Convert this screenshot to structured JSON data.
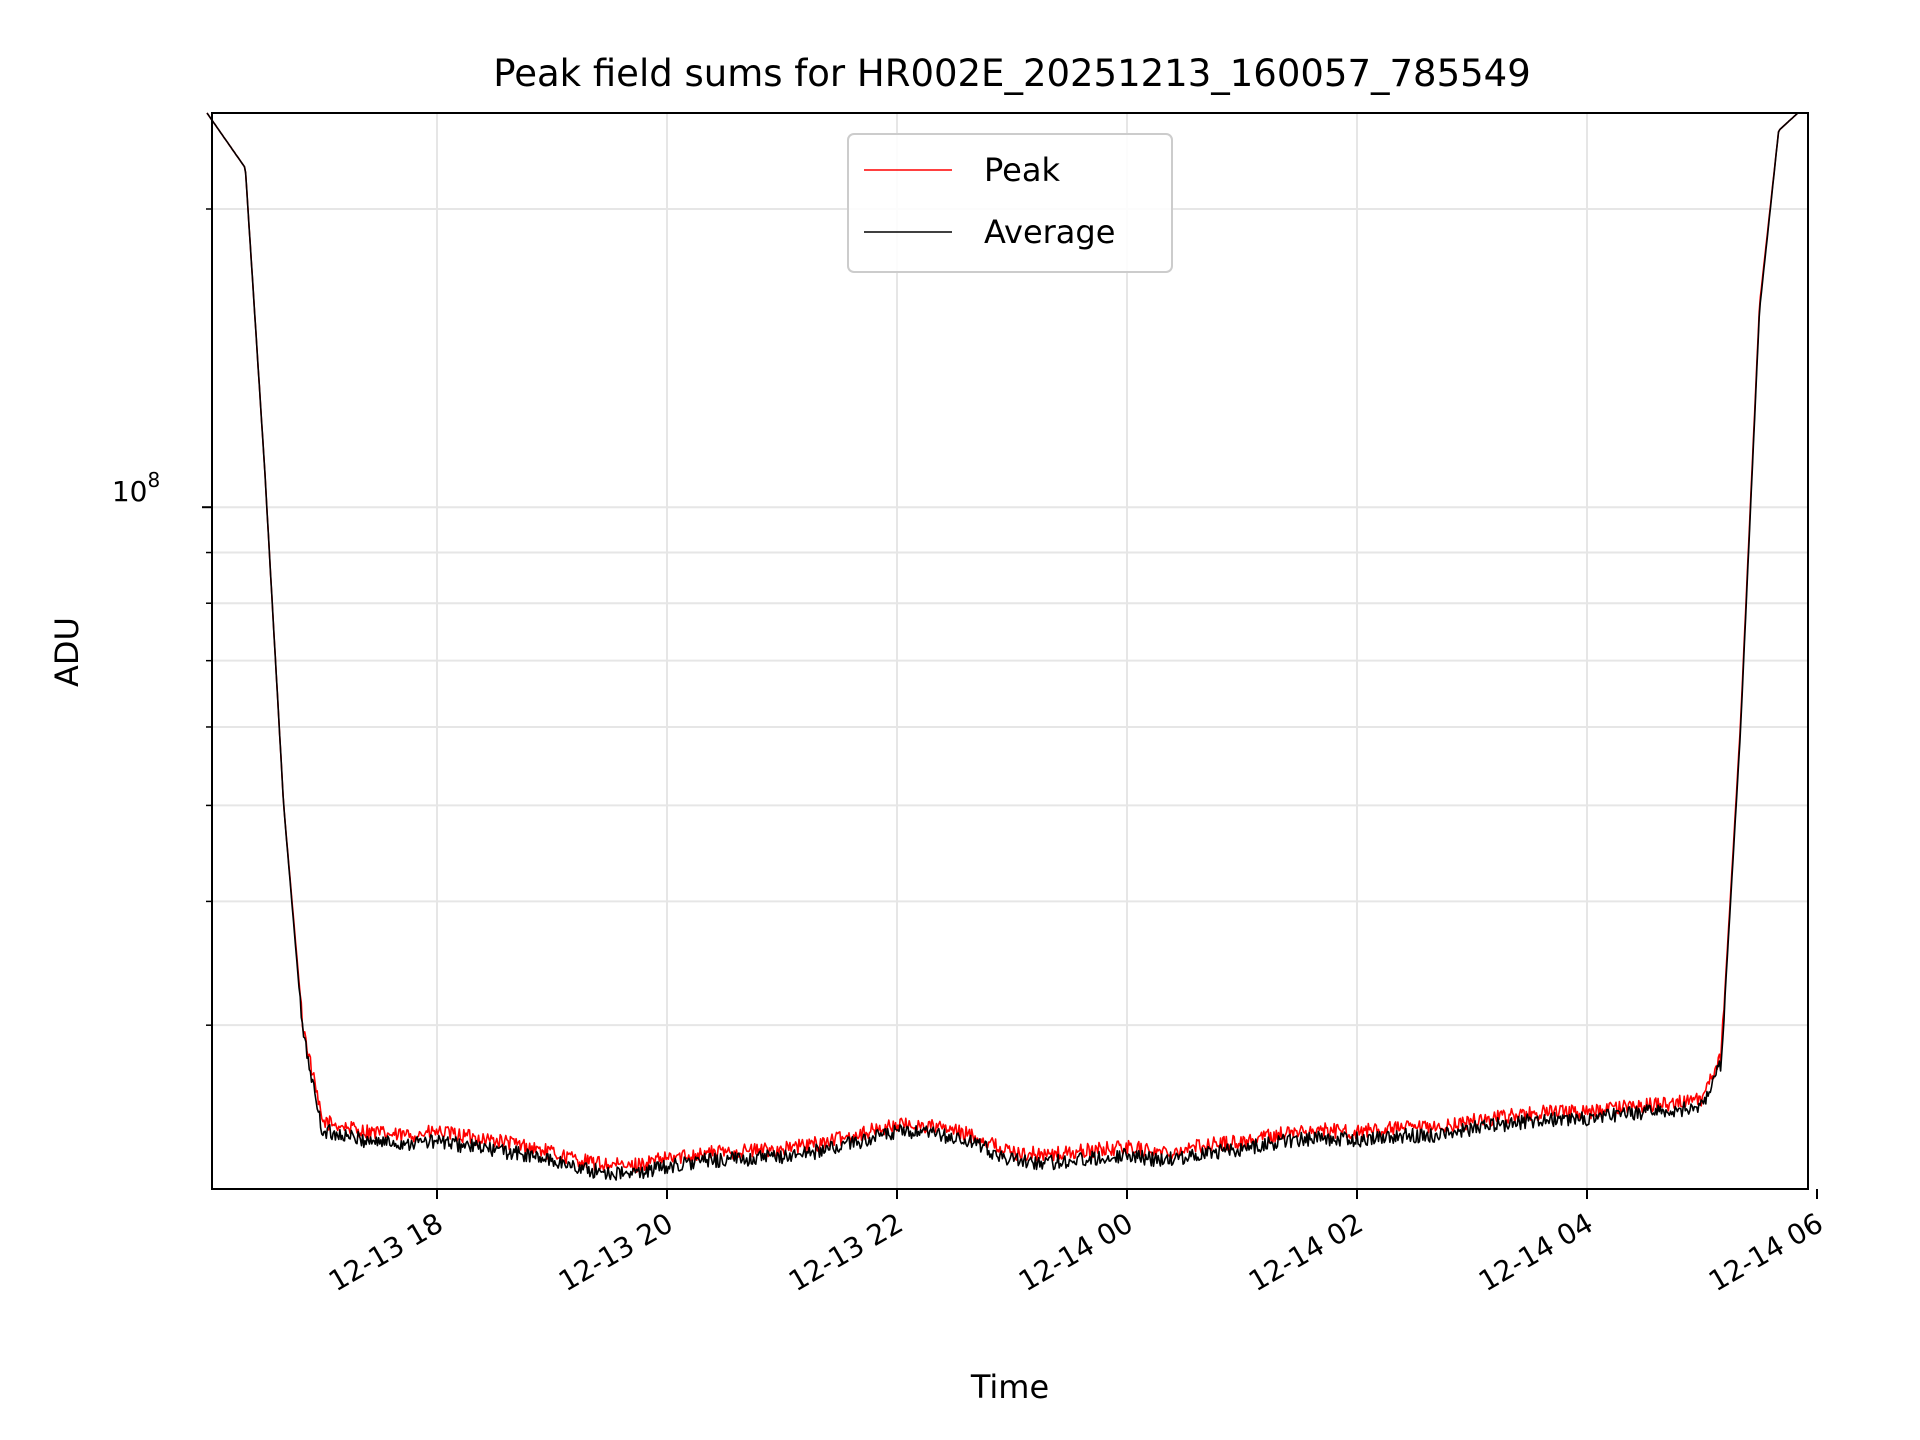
{
  "chart_data": {
    "type": "line",
    "title": "Peak field sums for HR002E_20251213_160057_785549",
    "xlabel": "Time",
    "ylabel": "ADU",
    "yscale": "log",
    "ylim": [
      20500000,
      250000000
    ],
    "xlim": [
      "12-13 16:00",
      "12-14 06:00"
    ],
    "x_ticks": [
      "12-13 18",
      "12-13 20",
      "12-13 22",
      "12-14 00",
      "12-14 02",
      "12-14 04",
      "12-14 06"
    ],
    "y_tick_label": "10",
    "y_tick_exponent": "8",
    "grid": true,
    "legend_position": "top-center",
    "series": [
      {
        "name": "Peak",
        "color": "#ff0000",
        "x": [
          "12-13 16:00",
          "12-13 16:20",
          "12-13 16:30",
          "12-13 16:40",
          "12-13 16:50",
          "12-13 17:00",
          "12-13 17:20",
          "12-13 17:40",
          "12-13 18:00",
          "12-13 18:20",
          "12-13 18:40",
          "12-13 19:00",
          "12-13 19:20",
          "12-13 19:40",
          "12-13 20:00",
          "12-13 20:20",
          "12-13 20:40",
          "12-13 21:00",
          "12-13 21:20",
          "12-13 21:40",
          "12-13 22:00",
          "12-13 22:20",
          "12-13 22:40",
          "12-13 23:00",
          "12-13 23:20",
          "12-13 23:40",
          "12-14 00:00",
          "12-14 00:20",
          "12-14 00:40",
          "12-14 01:00",
          "12-14 01:20",
          "12-14 01:40",
          "12-14 02:00",
          "12-14 02:20",
          "12-14 02:40",
          "12-14 03:00",
          "12-14 03:20",
          "12-14 03:40",
          "12-14 04:00",
          "12-14 04:20",
          "12-14 04:40",
          "12-14 05:00",
          "12-14 05:10",
          "12-14 05:20",
          "12-14 05:30",
          "12-14 05:40",
          "12-14 05:50"
        ],
        "values": [
          250000000,
          220000000,
          110000000,
          50000000,
          30000000,
          24000000,
          23500000,
          23200000,
          23400000,
          23100000,
          22800000,
          22300000,
          21800000,
          21600000,
          22000000,
          22300000,
          22400000,
          22500000,
          22800000,
          23300000,
          23800000,
          23700000,
          23200000,
          22300000,
          22200000,
          22400000,
          22600000,
          22300000,
          22700000,
          22900000,
          23300000,
          23500000,
          23400000,
          23600000,
          23600000,
          24000000,
          24300000,
          24500000,
          24500000,
          24800000,
          25000000,
          25200000,
          28000000,
          60000000,
          160000000,
          240000000,
          250000000
        ]
      },
      {
        "name": "Average",
        "color": "#000000",
        "x": [
          "12-13 16:00",
          "12-13 16:20",
          "12-13 16:30",
          "12-13 16:40",
          "12-13 16:50",
          "12-13 17:00",
          "12-13 17:20",
          "12-13 17:40",
          "12-13 18:00",
          "12-13 18:20",
          "12-13 18:40",
          "12-13 19:00",
          "12-13 19:20",
          "12-13 19:40",
          "12-13 20:00",
          "12-13 20:20",
          "12-13 20:40",
          "12-13 21:00",
          "12-13 21:20",
          "12-13 21:40",
          "12-13 22:00",
          "12-13 22:20",
          "12-13 22:40",
          "12-13 23:00",
          "12-13 23:20",
          "12-13 23:40",
          "12-14 00:00",
          "12-14 00:20",
          "12-14 00:40",
          "12-14 01:00",
          "12-14 01:20",
          "12-14 01:40",
          "12-14 02:00",
          "12-14 02:20",
          "12-14 02:40",
          "12-14 03:00",
          "12-14 03:20",
          "12-14 03:40",
          "12-14 04:00",
          "12-14 04:20",
          "12-14 04:40",
          "12-14 05:00",
          "12-14 05:10",
          "12-14 05:20",
          "12-14 05:30",
          "12-14 05:40",
          "12-14 05:50"
        ],
        "values": [
          250000000,
          220000000,
          110000000,
          50000000,
          29500000,
          23500000,
          23000000,
          22800000,
          22900000,
          22600000,
          22300000,
          21900000,
          21400000,
          21200000,
          21600000,
          21900000,
          22000000,
          22100000,
          22400000,
          22900000,
          23400000,
          23300000,
          22800000,
          21900000,
          21800000,
          22000000,
          22200000,
          21900000,
          22300000,
          22500000,
          22900000,
          23100000,
          23000000,
          23200000,
          23200000,
          23600000,
          23900000,
          24100000,
          24100000,
          24400000,
          24600000,
          24800000,
          27500000,
          59000000,
          158000000,
          240000000,
          250000000
        ]
      }
    ]
  }
}
